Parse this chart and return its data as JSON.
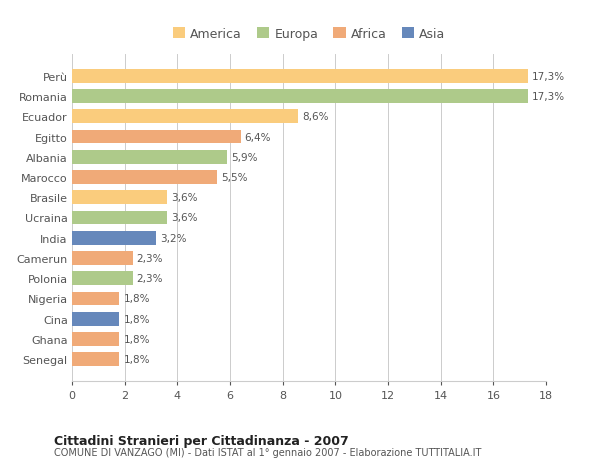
{
  "categories": [
    "Perù",
    "Romania",
    "Ecuador",
    "Egitto",
    "Albania",
    "Marocco",
    "Brasile",
    "Ucraina",
    "India",
    "Camerun",
    "Polonia",
    "Nigeria",
    "Cina",
    "Ghana",
    "Senegal"
  ],
  "values": [
    17.3,
    17.3,
    8.6,
    6.4,
    5.9,
    5.5,
    3.6,
    3.6,
    3.2,
    2.3,
    2.3,
    1.8,
    1.8,
    1.8,
    1.8
  ],
  "continents": [
    "America",
    "Europa",
    "America",
    "Africa",
    "Europa",
    "Africa",
    "America",
    "Europa",
    "Asia",
    "Africa",
    "Europa",
    "Africa",
    "Asia",
    "Africa",
    "Africa"
  ],
  "labels": [
    "17,3%",
    "17,3%",
    "8,6%",
    "6,4%",
    "5,9%",
    "5,5%",
    "3,6%",
    "3,6%",
    "3,2%",
    "2,3%",
    "2,3%",
    "1,8%",
    "1,8%",
    "1,8%",
    "1,8%"
  ],
  "colors": {
    "America": "#FACC7D",
    "Europa": "#AECA8A",
    "Africa": "#F0AA78",
    "Asia": "#6688BB"
  },
  "legend_order": [
    "America",
    "Europa",
    "Africa",
    "Asia"
  ],
  "xlim": [
    0,
    18
  ],
  "xticks": [
    0,
    2,
    4,
    6,
    8,
    10,
    12,
    14,
    16,
    18
  ],
  "title": "Cittadini Stranieri per Cittadinanza - 2007",
  "subtitle": "COMUNE DI VANZAGO (MI) - Dati ISTAT al 1° gennaio 2007 - Elaborazione TUTTITALIA.IT",
  "bg_color": "#FFFFFF",
  "grid_color": "#CCCCCC",
  "label_color": "#555555",
  "title_color": "#222222"
}
